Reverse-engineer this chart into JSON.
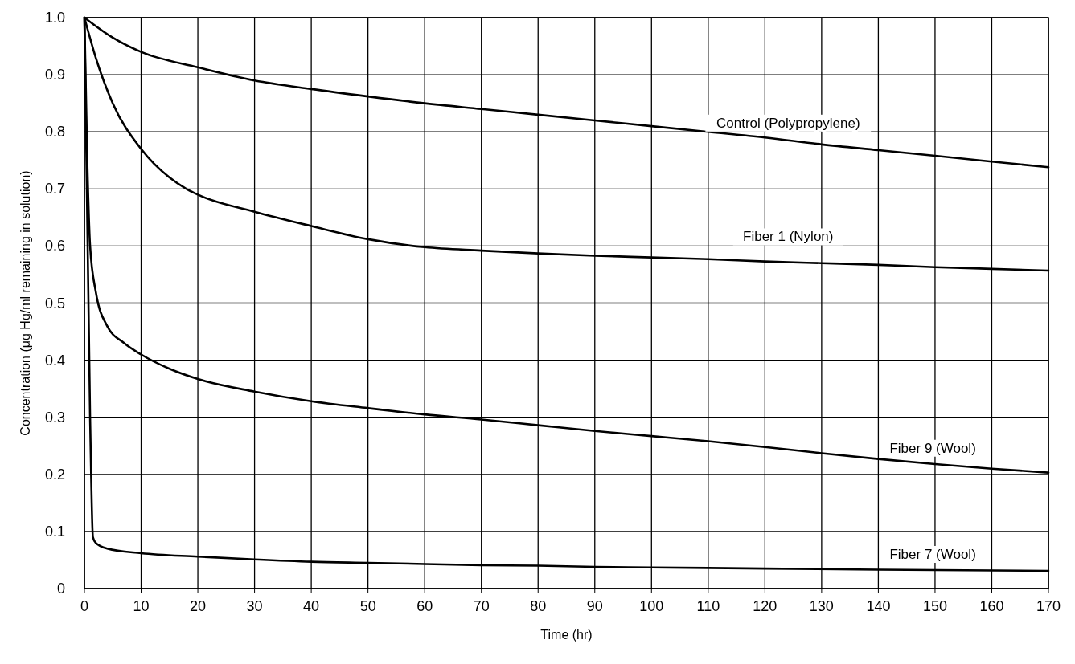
{
  "chart_data": {
    "type": "line",
    "xlabel": "Time (hr)",
    "ylabel": "Concentration (μg Hg/ml  remaining in solution)",
    "xlim": [
      0,
      170
    ],
    "xticks": [
      0,
      10,
      20,
      30,
      40,
      50,
      60,
      70,
      80,
      90,
      100,
      110,
      120,
      130,
      140,
      150,
      160,
      170
    ],
    "ylim": [
      0,
      1
    ],
    "yticks": [
      {
        "value": 0,
        "label": "0"
      },
      0.1,
      0.2,
      0.3,
      0.4,
      0.5,
      0.6,
      0.7,
      0.8,
      0.9,
      {
        "value": 1,
        "label": "1.0"
      }
    ],
    "grid": true,
    "marker": "none",
    "line_style": "solid",
    "series": [
      {
        "name": "Control (Polypropylene)",
        "color": "#000000",
        "x": [
          0,
          5,
          10,
          20,
          30,
          40,
          50,
          60,
          70,
          80,
          90,
          100,
          110,
          120,
          130,
          140,
          150,
          160,
          170
        ],
        "values": [
          1.0,
          0.965,
          0.94,
          0.913,
          0.89,
          0.875,
          0.862,
          0.85,
          0.84,
          0.83,
          0.82,
          0.81,
          0.8,
          0.79,
          0.778,
          0.768,
          0.758,
          0.748,
          0.738
        ]
      },
      {
        "name": "Fiber 1 (Nylon)",
        "color": "#000000",
        "x": [
          0,
          2,
          5,
          10,
          15,
          18,
          20,
          30,
          40,
          50,
          60,
          70,
          80,
          90,
          100,
          110,
          120,
          130,
          140,
          150,
          160,
          170
        ],
        "values": [
          1.0,
          0.93,
          0.85,
          0.77,
          0.72,
          0.7,
          0.69,
          0.66,
          0.635,
          0.612,
          0.598,
          0.592,
          0.587,
          0.583,
          0.58,
          0.577,
          0.573,
          0.57,
          0.567,
          0.563,
          0.56,
          0.557
        ]
      },
      {
        "name": "Fiber 9 (Wool)",
        "color": "#000000",
        "x": [
          0,
          0.5,
          1,
          2,
          4,
          7,
          10,
          15,
          20,
          30,
          40,
          50,
          60,
          70,
          80,
          90,
          100,
          110,
          120,
          130,
          140,
          150,
          160,
          170
        ],
        "values": [
          1.0,
          0.75,
          0.6,
          0.52,
          0.46,
          0.43,
          0.41,
          0.385,
          0.367,
          0.345,
          0.328,
          0.316,
          0.305,
          0.296,
          0.286,
          0.276,
          0.267,
          0.258,
          0.248,
          0.237,
          0.227,
          0.218,
          0.21,
          0.203
        ]
      },
      {
        "name": "Fiber 7 (Wool)",
        "color": "#000000",
        "x": [
          0,
          1,
          1.5,
          2,
          4,
          10,
          20,
          30,
          40,
          50,
          60,
          70,
          80,
          90,
          100,
          120,
          140,
          170
        ],
        "values": [
          1.0,
          0.3,
          0.09,
          0.08,
          0.07,
          0.062,
          0.056,
          0.051,
          0.047,
          0.045,
          0.043,
          0.041,
          0.04,
          0.038,
          0.037,
          0.035,
          0.033,
          0.031
        ]
      }
    ]
  }
}
